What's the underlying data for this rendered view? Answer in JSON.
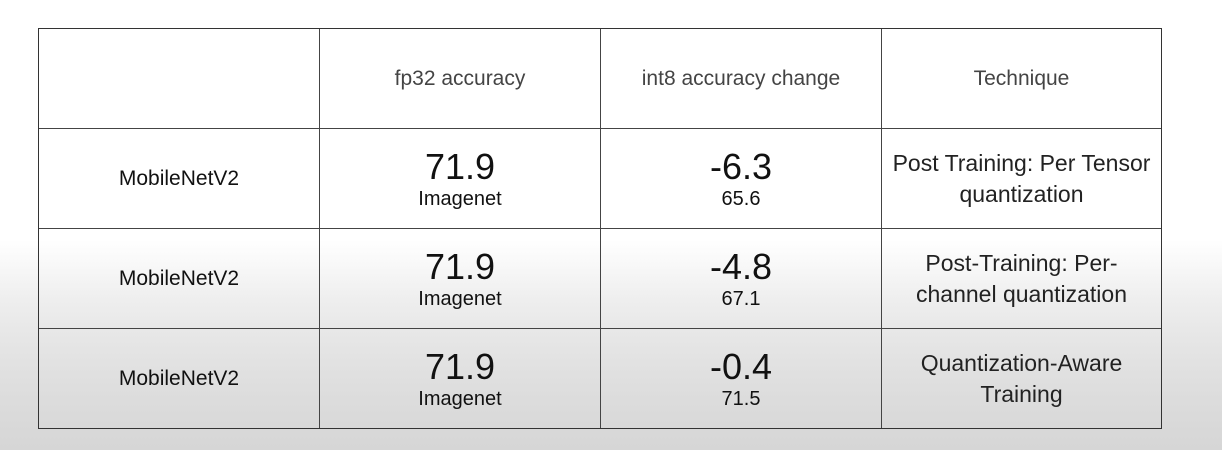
{
  "table": {
    "headers": [
      "",
      "fp32 accuracy",
      "int8 accuracy change",
      "Technique"
    ],
    "rows": [
      {
        "model": "MobileNetV2",
        "fp32_value": "71.9",
        "fp32_dataset": "Imagenet",
        "int8_change": "-6.3",
        "int8_value": "65.6",
        "technique": "Post Training: Per Tensor quantization"
      },
      {
        "model": "MobileNetV2",
        "fp32_value": "71.9",
        "fp32_dataset": "Imagenet",
        "int8_change": "-4.8",
        "int8_value": "67.1",
        "technique": "Post-Training: Per-channel quantization"
      },
      {
        "model": "MobileNetV2",
        "fp32_value": "71.9",
        "fp32_dataset": "Imagenet",
        "int8_change": "-0.4",
        "int8_value": "71.5",
        "technique": "Quantization-Aware Training"
      }
    ]
  }
}
